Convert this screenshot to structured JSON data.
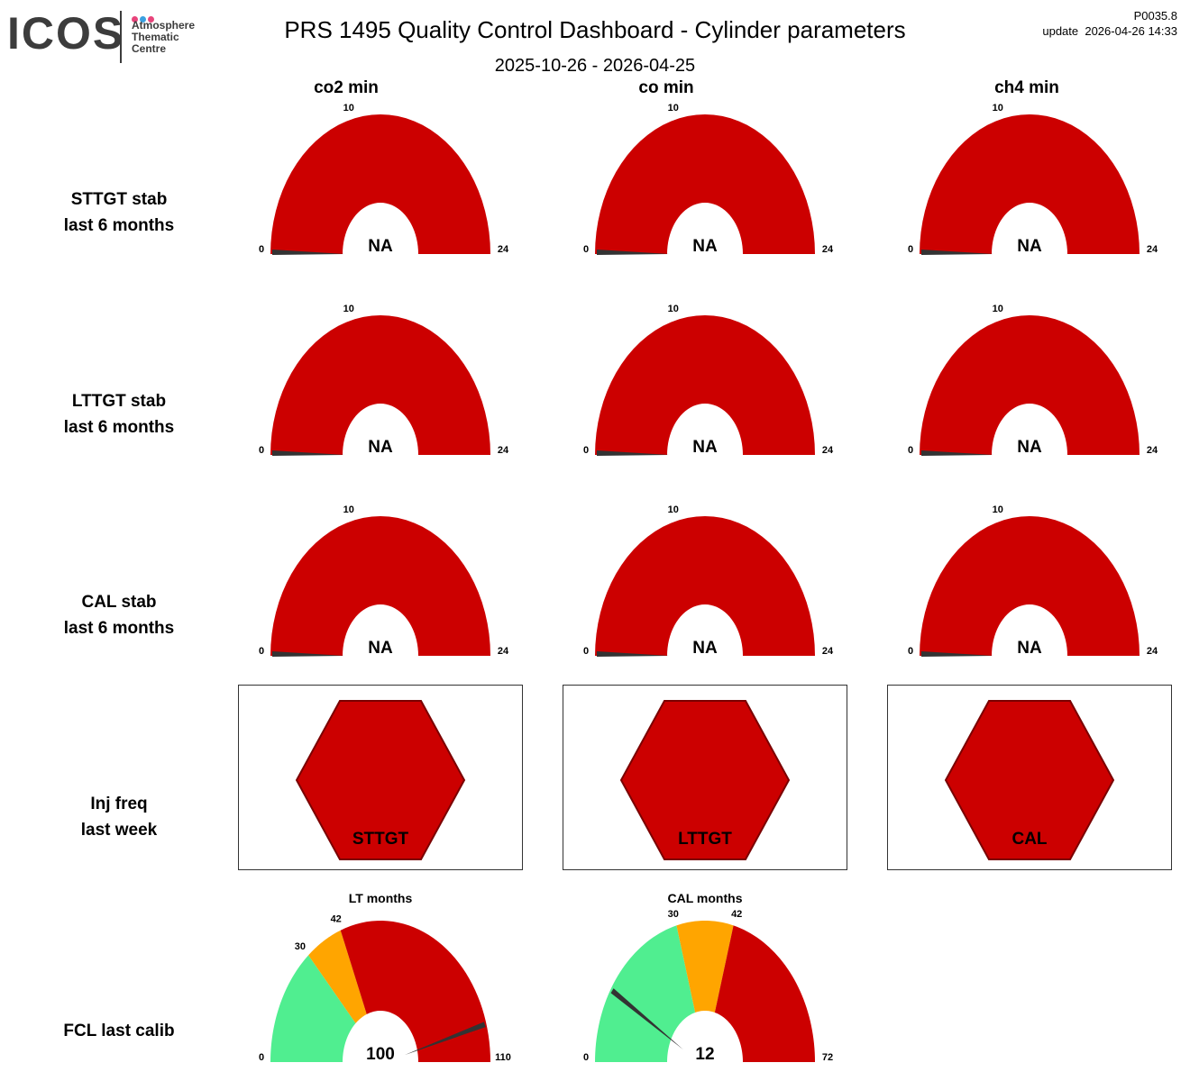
{
  "header": {
    "logo_text": "ICOS",
    "logo_sub": [
      "Atmosphere",
      "Thematic",
      "Centre"
    ],
    "title": "PRS 1495 Quality Control Dashboard - Cylinder parameters",
    "date_range": "2025-10-26 - 2026-04-25",
    "version": "P0035.8",
    "update": "update  2026-04-26 14:33"
  },
  "colors": {
    "red": "#cc0000",
    "orange": "#ffa500",
    "green": "#50ee90",
    "needle": "#333333",
    "logo_dots": [
      "#e8447b",
      "#3aa0e0",
      "#e8447b"
    ]
  },
  "columns": [
    "co2 min",
    "co min",
    "ch4 min"
  ],
  "rows": [
    {
      "label": [
        "STTGT stab",
        "last 6 months"
      ]
    },
    {
      "label": [
        "LTTGT stab",
        "last 6 months"
      ]
    },
    {
      "label": [
        "CAL stab",
        "last 6 months"
      ]
    },
    {
      "label": [
        "Inj freq",
        "last week"
      ]
    },
    {
      "label": [
        "FCL last calib"
      ]
    }
  ],
  "chart_data": [
    {
      "type": "gauge",
      "group": "stability",
      "rows": [
        "STTGT stab",
        "LTTGT stab",
        "CAL stab"
      ],
      "columns": [
        "co2 min",
        "co min",
        "ch4 min"
      ],
      "min": 0,
      "max": 24,
      "ticks": [
        "0",
        "10",
        "24"
      ],
      "bands": [
        {
          "from": 0,
          "to": 24,
          "color": "red"
        }
      ],
      "needle": 0,
      "value_label": "NA"
    },
    {
      "type": "hexagon-status",
      "group": "inj_freq",
      "items": [
        {
          "label": "STTGT",
          "color": "red"
        },
        {
          "label": "LTTGT",
          "color": "red"
        },
        {
          "label": "CAL",
          "color": "red"
        }
      ]
    },
    {
      "type": "gauge",
      "group": "fcl",
      "items": [
        {
          "title": "LT months",
          "min": 0,
          "max": 110,
          "ticks": [
            "0",
            "30",
            "42",
            "110"
          ],
          "bands": [
            {
              "from": 0,
              "to": 30,
              "color": "green"
            },
            {
              "from": 30,
              "to": 42,
              "color": "orange"
            },
            {
              "from": 42,
              "to": 110,
              "color": "red"
            }
          ],
          "needle": 100,
          "value_label": "100"
        },
        {
          "title": "CAL months",
          "min": 0,
          "max": 72,
          "ticks": [
            "0",
            "30",
            "42",
            "72"
          ],
          "bands": [
            {
              "from": 0,
              "to": 30,
              "color": "green"
            },
            {
              "from": 30,
              "to": 42,
              "color": "orange"
            },
            {
              "from": 42,
              "to": 72,
              "color": "red"
            }
          ],
          "needle": 12,
          "value_label": "12"
        }
      ]
    }
  ]
}
